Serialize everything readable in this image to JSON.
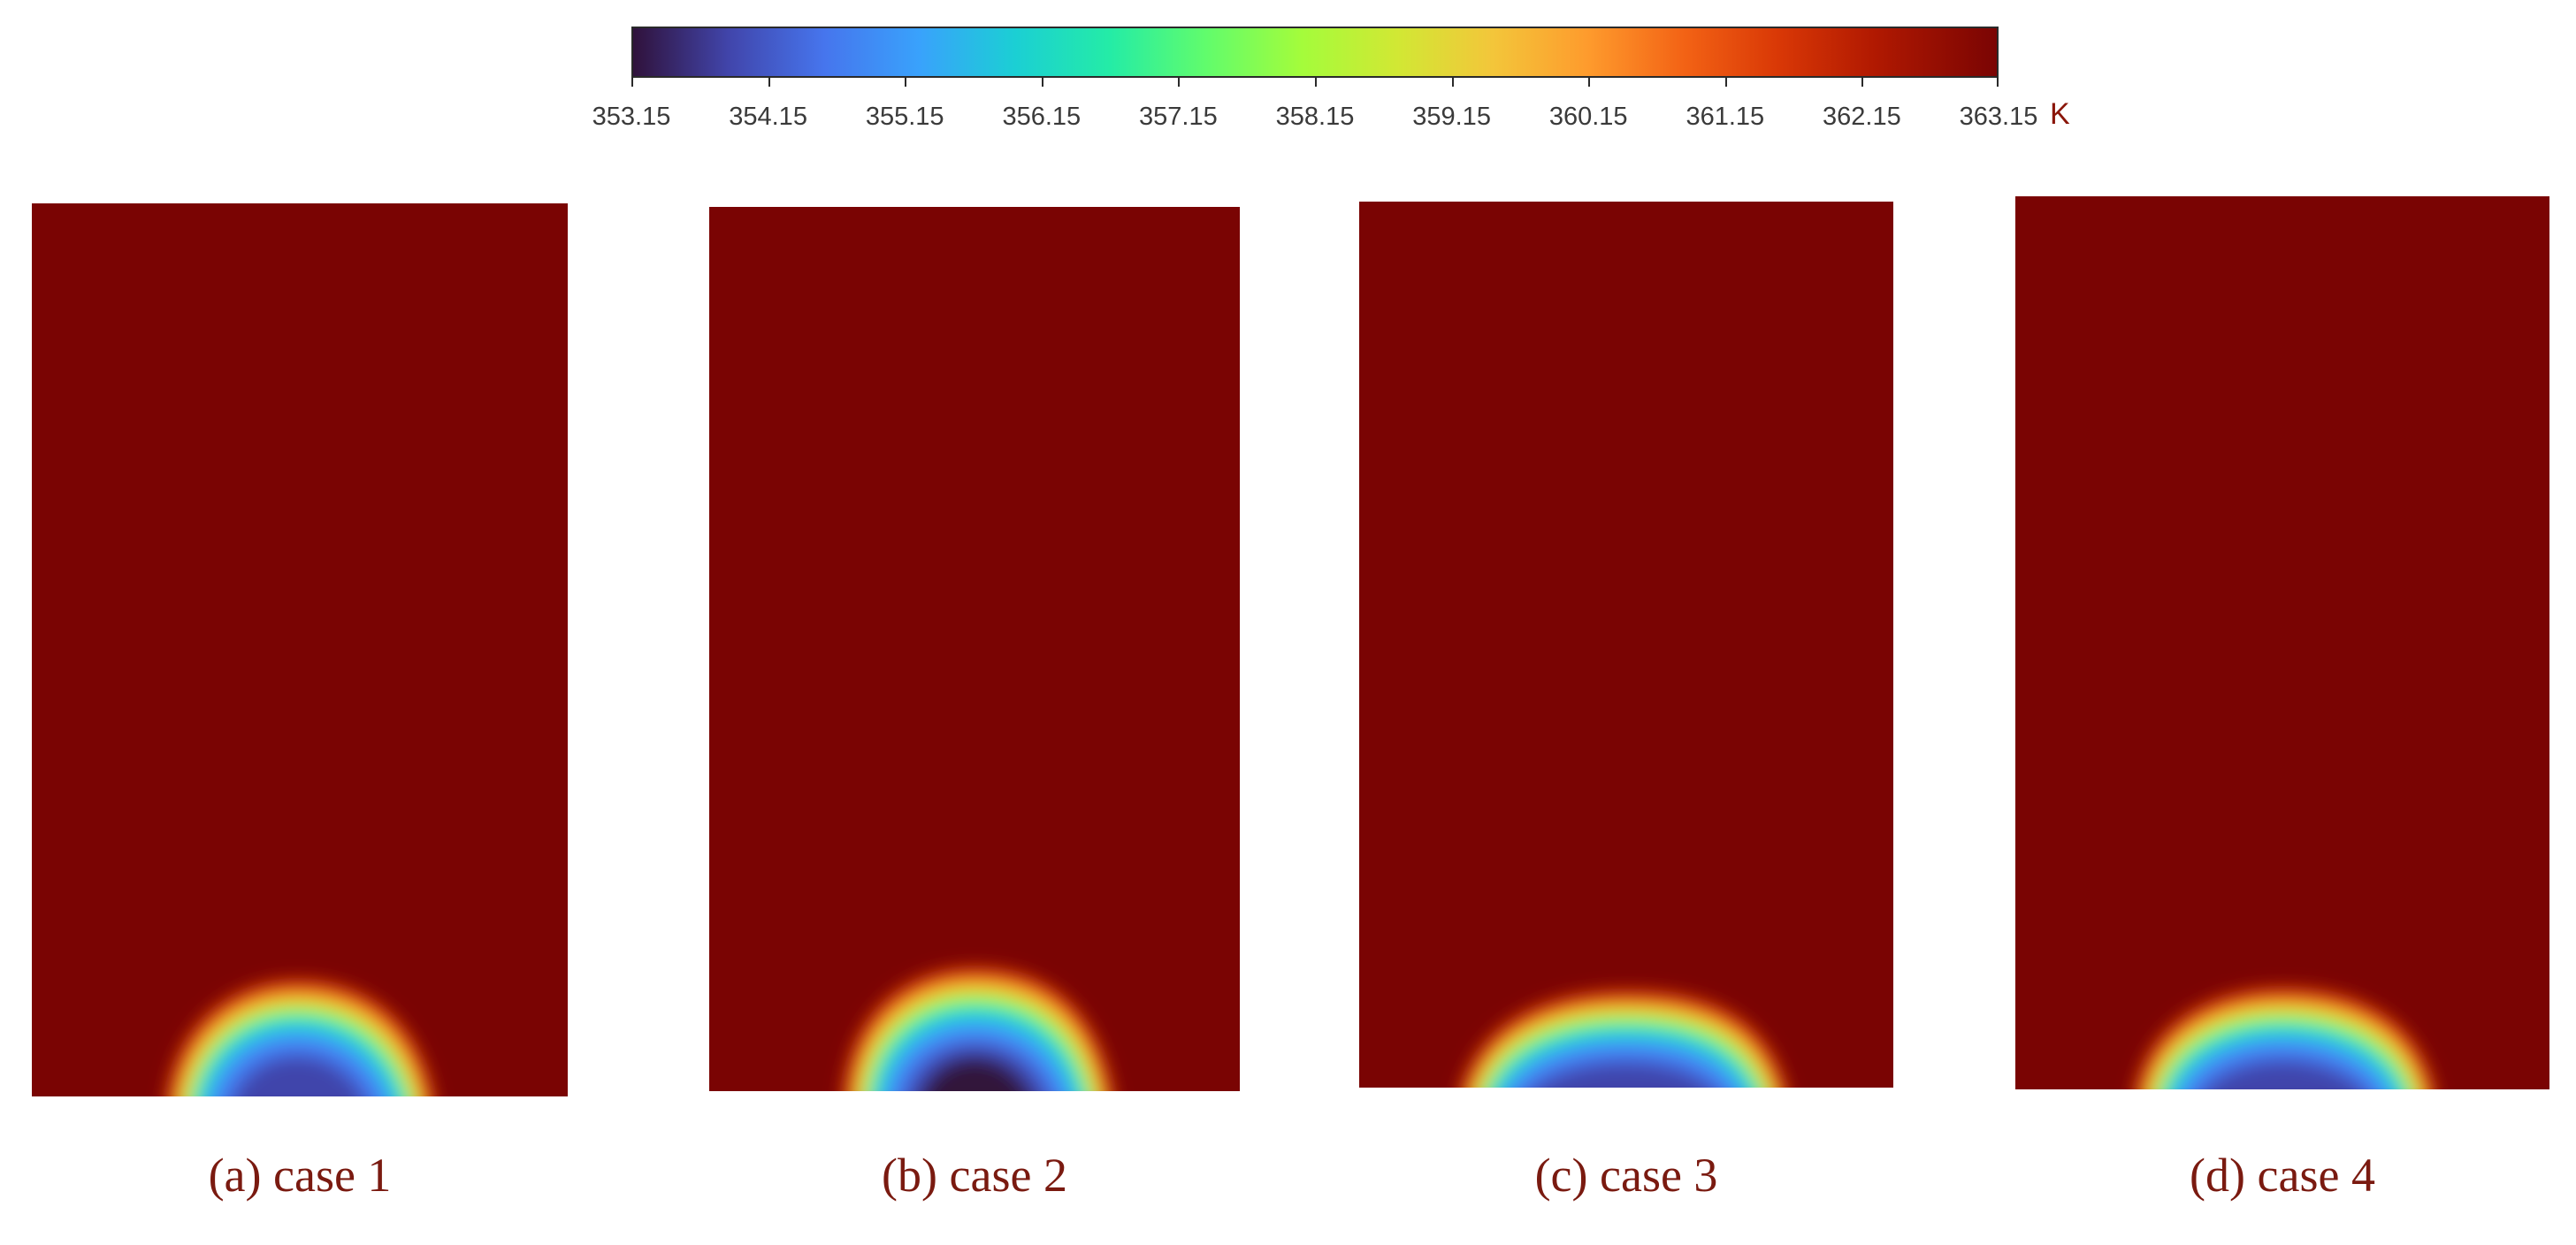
{
  "colorbar": {
    "tick_labels": [
      "353.15",
      "354.15",
      "355.15",
      "356.15",
      "357.15",
      "358.15",
      "359.15",
      "360.15",
      "361.15",
      "362.15",
      "363.15"
    ],
    "unit": "K",
    "min": 353.15,
    "max": 363.15,
    "colormap": "turbo"
  },
  "panels": [
    {
      "caption": "(a) case 1"
    },
    {
      "caption": "(b) case 2"
    },
    {
      "caption": "(c) case 3"
    },
    {
      "caption": "(d) case 4"
    }
  ],
  "colors": {
    "background_field": "#7a0403",
    "caption_text": "#7a1a10"
  }
}
